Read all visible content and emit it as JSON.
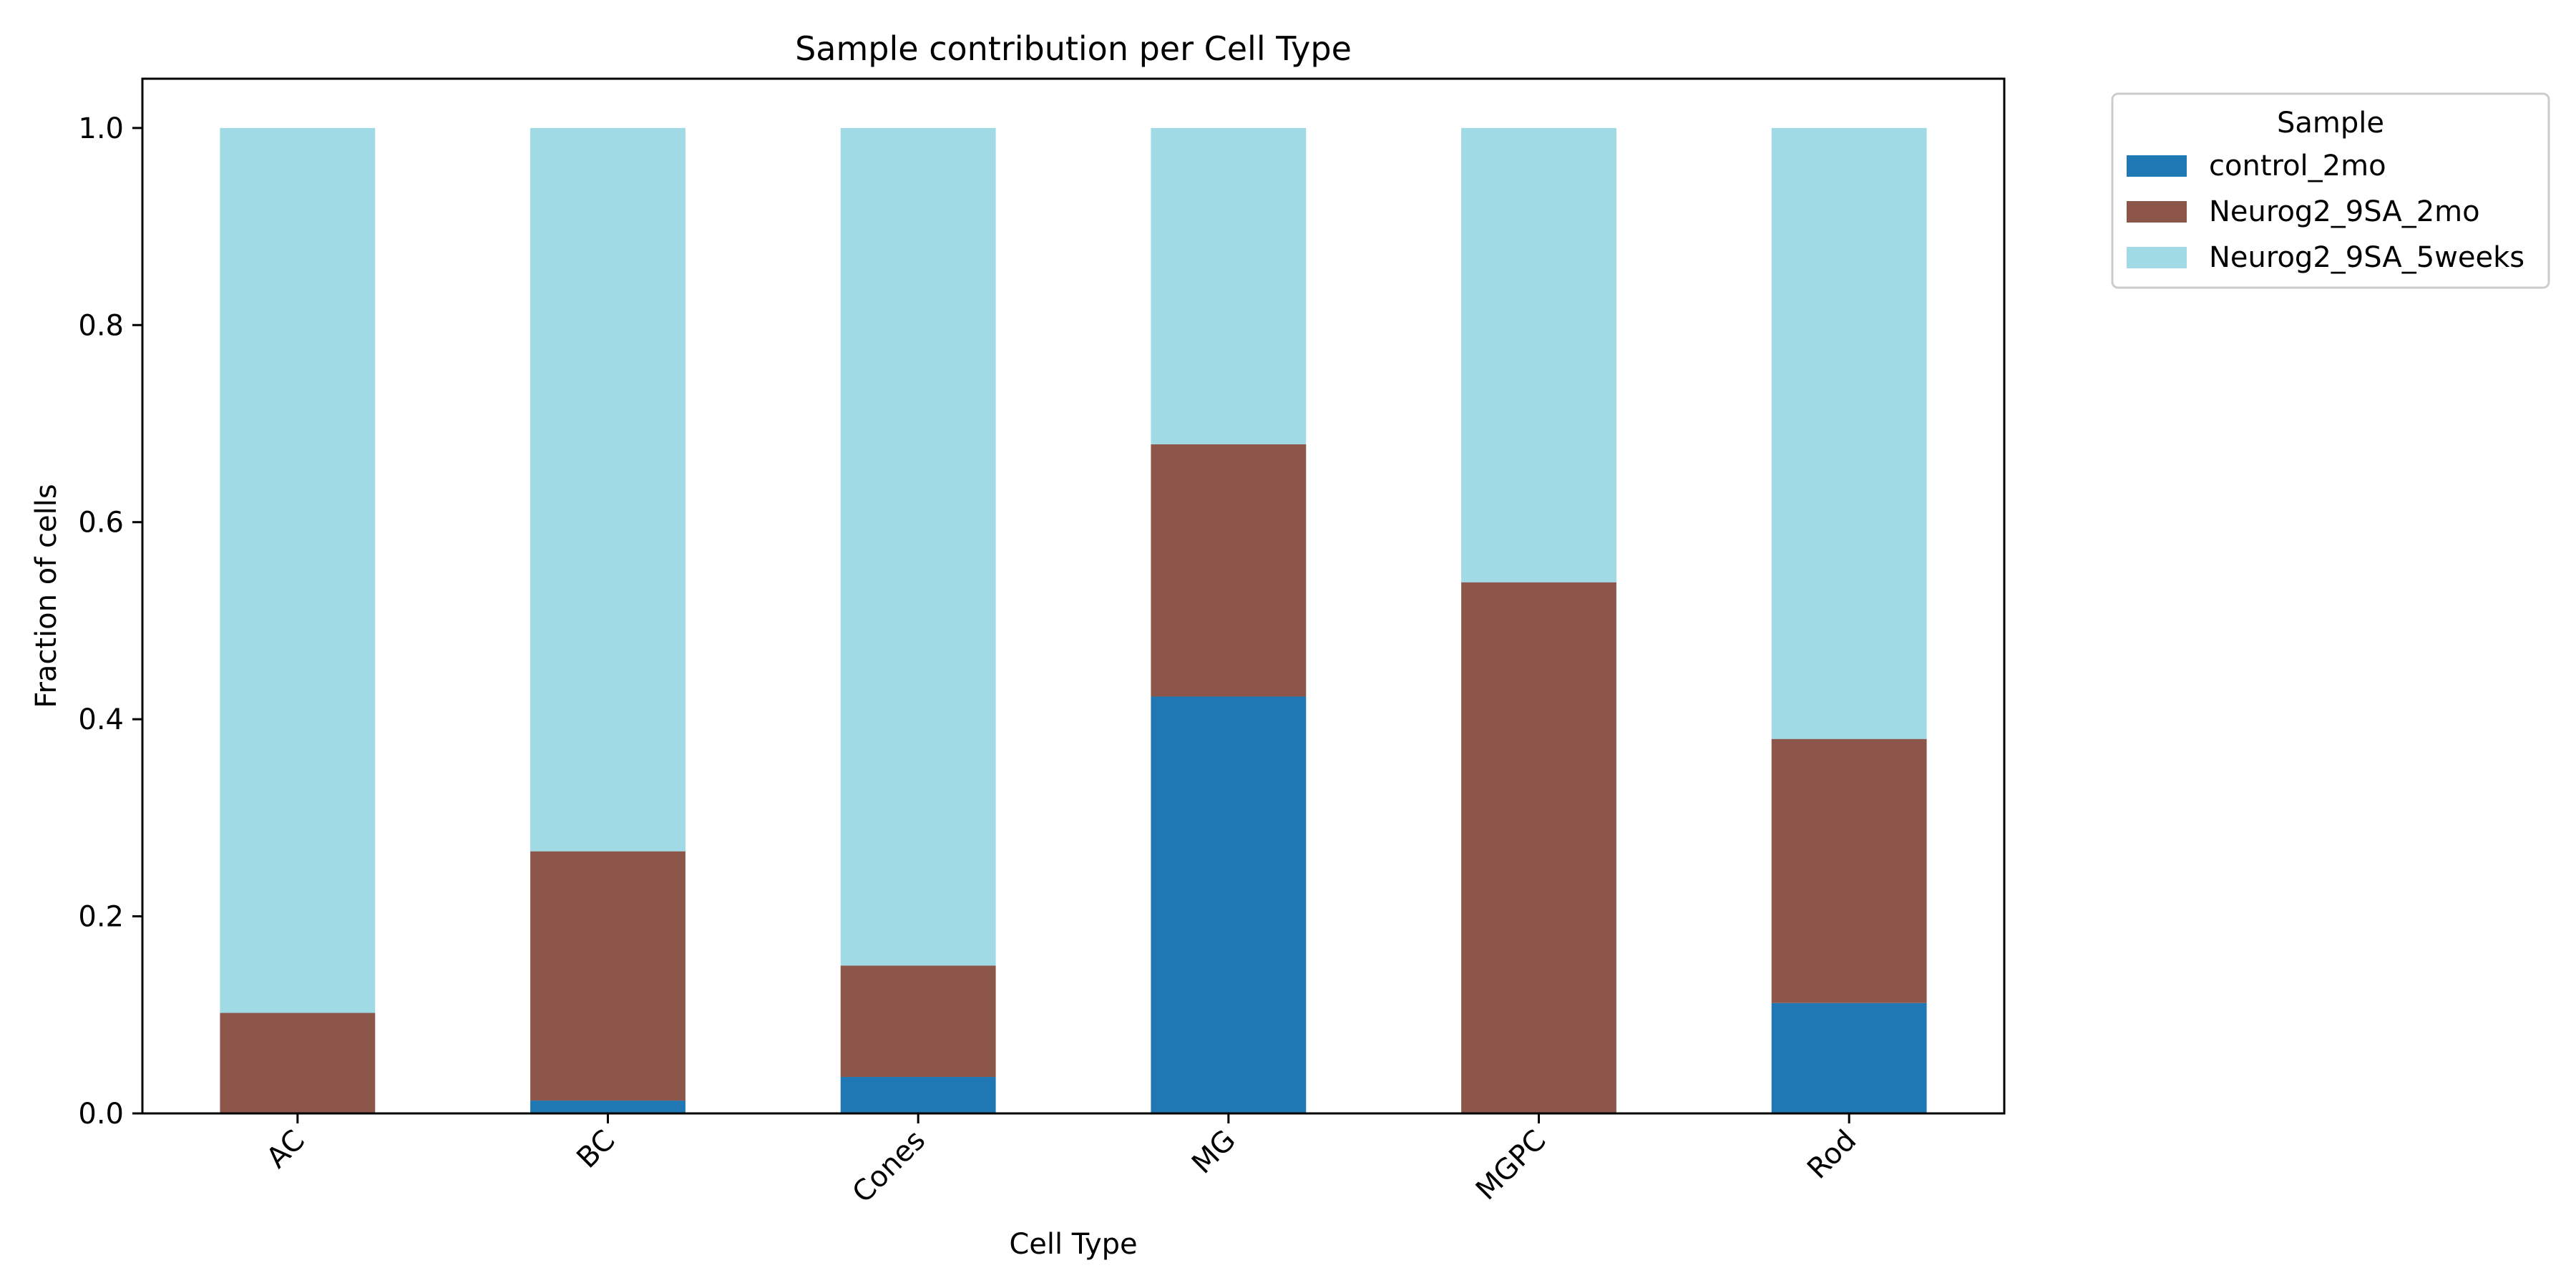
{
  "chart_data": {
    "type": "bar",
    "stacked": true,
    "title": "Sample contribution per Cell Type",
    "xlabel": "Cell Type",
    "ylabel": "Fraction of cells",
    "ylim": [
      0,
      1.05
    ],
    "yticks": [
      "0.0",
      "0.2",
      "0.4",
      "0.6",
      "0.8",
      "1.0"
    ],
    "categories": [
      "AC",
      "BC",
      "Cones",
      "MG",
      "MGPC",
      "Rod"
    ],
    "series": [
      {
        "name": "control_2mo",
        "color": "#1f77b4",
        "values": [
          0.0,
          0.013,
          0.037,
          0.423,
          0.0,
          0.112
        ]
      },
      {
        "name": "Neurog2_9SA_2mo",
        "color": "#8c564b",
        "values": [
          0.102,
          0.253,
          0.113,
          0.256,
          0.539,
          0.268
        ]
      },
      {
        "name": "Neurog2_9SA_5weeks",
        "color": "#9fdae5",
        "values": [
          0.898,
          0.734,
          0.85,
          0.321,
          0.461,
          0.62
        ]
      }
    ],
    "legend": {
      "title": "Sample",
      "position": "outside-top-right"
    },
    "grid": false
  }
}
